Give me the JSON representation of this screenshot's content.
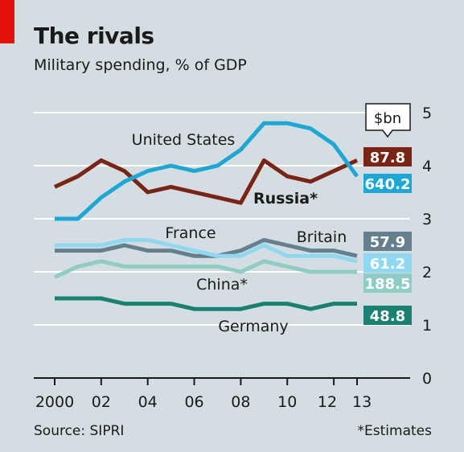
{
  "header": {
    "title": "The rivals",
    "subtitle": "Military spending, % of GDP"
  },
  "footer": {
    "source": "Source: SIPRI",
    "note": "*Estimates"
  },
  "colors": {
    "background": "#d4dde2",
    "grid": "#ffffff",
    "us": "#1ea7d4",
    "russia": "#7a2416",
    "britain": "#657f8f",
    "france": "#8fd8f0",
    "china": "#8fcdc4",
    "germany": "#1a8071"
  },
  "chart_data": {
    "type": "line",
    "title": "The rivals",
    "subtitle": "Military spending, % of GDP",
    "x": [
      2000,
      2001,
      2002,
      2003,
      2004,
      2005,
      2006,
      2007,
      2008,
      2009,
      2010,
      2011,
      2012,
      2013
    ],
    "x_tick_labels": [
      "2000",
      "02",
      "04",
      "06",
      "08",
      "10",
      "12",
      "13"
    ],
    "x_tick_values": [
      2000,
      2002,
      2004,
      2006,
      2008,
      2010,
      2012,
      2013
    ],
    "ylim": [
      0,
      5
    ],
    "y_ticks": [
      0,
      1,
      2,
      3,
      4,
      5
    ],
    "y_axis_side": "right",
    "grid": true,
    "bn_header": "$bn",
    "series": [
      {
        "name": "United States",
        "color": "#1ea7d4",
        "label_box": "640.2",
        "values": [
          3.0,
          3.0,
          3.4,
          3.7,
          3.9,
          4.0,
          3.9,
          4.0,
          4.3,
          4.8,
          4.8,
          4.7,
          4.4,
          3.8
        ]
      },
      {
        "name": "Russia*",
        "color": "#7a2416",
        "label_box": "87.8",
        "values": [
          3.6,
          3.8,
          4.1,
          3.9,
          3.5,
          3.6,
          3.5,
          3.4,
          3.3,
          4.1,
          3.8,
          3.7,
          3.9,
          4.1
        ]
      },
      {
        "name": "Britain",
        "color": "#657f8f",
        "label_box": "57.9",
        "values": [
          2.4,
          2.4,
          2.4,
          2.5,
          2.4,
          2.4,
          2.3,
          2.3,
          2.4,
          2.6,
          2.5,
          2.4,
          2.4,
          2.3
        ]
      },
      {
        "name": "France",
        "color": "#8fd8f0",
        "label_box": "61.2",
        "values": [
          2.5,
          2.5,
          2.5,
          2.6,
          2.6,
          2.5,
          2.4,
          2.3,
          2.3,
          2.5,
          2.3,
          2.3,
          2.3,
          2.2
        ]
      },
      {
        "name": "China*",
        "color": "#8fcdc4",
        "label_box": "188.5",
        "values": [
          1.9,
          2.1,
          2.2,
          2.1,
          2.1,
          2.1,
          2.1,
          2.1,
          2.0,
          2.2,
          2.1,
          2.0,
          2.0,
          2.0
        ]
      },
      {
        "name": "Germany",
        "color": "#1a8071",
        "label_box": "48.8",
        "values": [
          1.5,
          1.5,
          1.5,
          1.4,
          1.4,
          1.4,
          1.3,
          1.3,
          1.3,
          1.4,
          1.4,
          1.3,
          1.4,
          1.4
        ]
      }
    ]
  }
}
